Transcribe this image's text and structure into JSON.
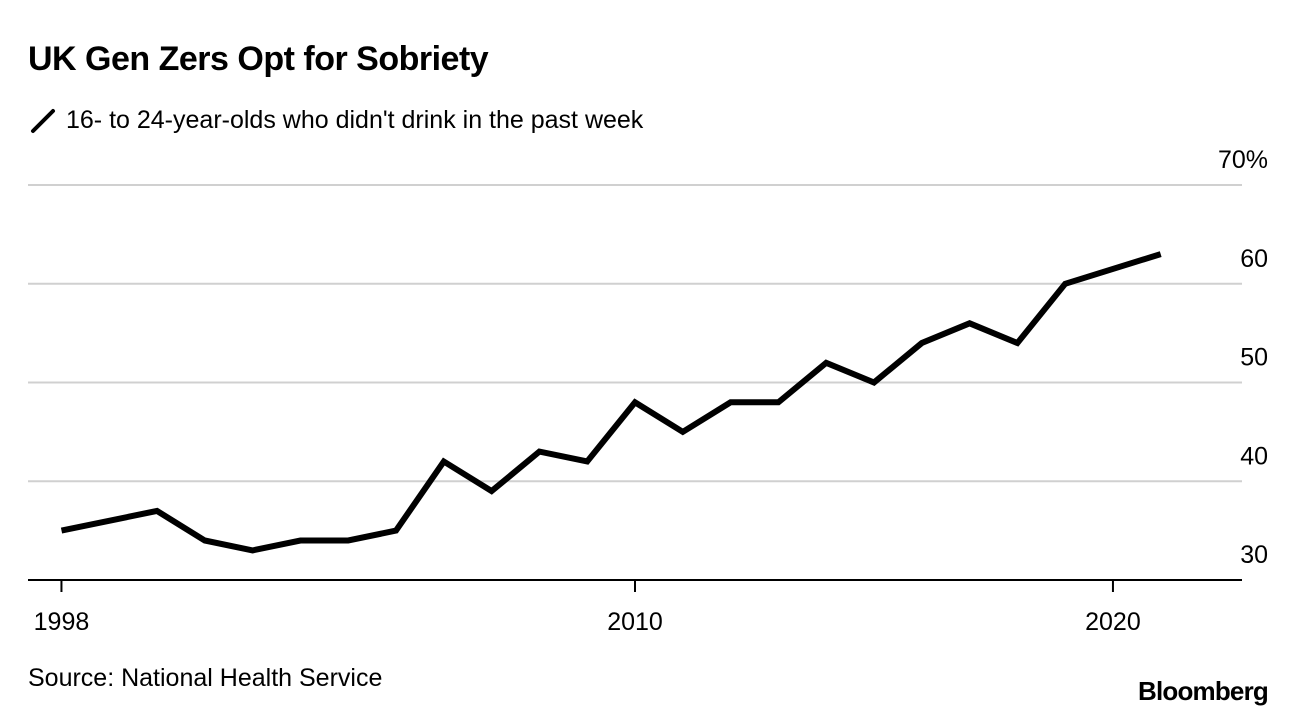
{
  "header": {
    "title": "UK Gen Zers Opt for Sobriety"
  },
  "legend": {
    "label": "16- to 24-year-olds who didn't drink in the past week",
    "swatch_icon": "diagonal-line-icon"
  },
  "footer": {
    "source": "Source: National Health Service",
    "brand": "Bloomberg"
  },
  "colors": {
    "line": "#000000",
    "grid": "#d0d0d0",
    "axis": "#000000"
  },
  "chart_data": {
    "type": "line",
    "title": "UK Gen Zers Opt for Sobriety",
    "xlabel": "",
    "ylabel": "",
    "xlim": [
      1997.3,
      2022.7
    ],
    "ylim": [
      30,
      70
    ],
    "y_ticks": [
      30,
      40,
      50,
      60,
      70
    ],
    "y_tick_labels": [
      "30",
      "40",
      "50",
      "60",
      "70%"
    ],
    "x_ticks": [
      1998,
      2010,
      2020
    ],
    "x_tick_labels": [
      "1998",
      "2010",
      "2020"
    ],
    "grid": true,
    "legend": "top-left",
    "series": [
      {
        "name": "16- to 24-year-olds who didn't drink in the past week",
        "x": [
          1998,
          2000,
          2001,
          2002,
          2003,
          2004,
          2005,
          2006,
          2007,
          2008,
          2009,
          2010,
          2011,
          2012,
          2013,
          2014,
          2015,
          2016,
          2017,
          2018,
          2019,
          2021
        ],
        "values": [
          35,
          37,
          34,
          33,
          34,
          34,
          35,
          42,
          39,
          43,
          42,
          48,
          45,
          48,
          48,
          52,
          50,
          54,
          56,
          54,
          60,
          63
        ]
      }
    ]
  }
}
